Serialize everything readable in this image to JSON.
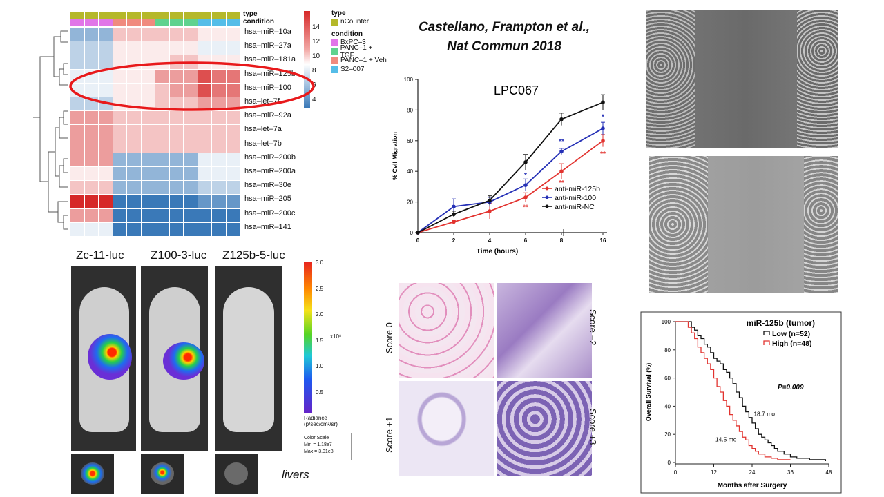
{
  "citation": {
    "line1": "Castellano, Frampton et al.,",
    "line2": "Nat Commun 2018"
  },
  "heatmap": {
    "annotation_labels": {
      "type": "type",
      "condition": "condition"
    },
    "rows": [
      "hsa–miR–10a",
      "hsa–miR–27a",
      "hsa–miR–181a",
      "hsa–miR–125b",
      "hsa–miR–100",
      "hsa–let–7f",
      "hsa–miR–92a",
      "hsa–let–7a",
      "hsa–let–7b",
      "hsa–miR–200b",
      "hsa–miR–200a",
      "hsa–miR–30e",
      "hsa–miR–205",
      "hsa–miR–200c",
      "hsa–miR–141"
    ],
    "values": [
      [
        6,
        6,
        6,
        10,
        10,
        10,
        10,
        10,
        10,
        9,
        9,
        9
      ],
      [
        7,
        7,
        7,
        9,
        9,
        9,
        9,
        9,
        9,
        8,
        8,
        8
      ],
      [
        7,
        7,
        7,
        9,
        9,
        9,
        9,
        10,
        10,
        9,
        9,
        9
      ],
      [
        8,
        8,
        8,
        9,
        9,
        9,
        11,
        11,
        11,
        13,
        12,
        12
      ],
      [
        8,
        8,
        8,
        9,
        9,
        9,
        10,
        11,
        11,
        13,
        12,
        12
      ],
      [
        7,
        7,
        7,
        9,
        9,
        9,
        10,
        10,
        10,
        11,
        11,
        11
      ],
      [
        11,
        11,
        11,
        10,
        10,
        10,
        10,
        10,
        10,
        10,
        10,
        10
      ],
      [
        11,
        11,
        11,
        10,
        10,
        10,
        10,
        10,
        10,
        10,
        10,
        10
      ],
      [
        11,
        11,
        11,
        10,
        10,
        10,
        10,
        10,
        10,
        10,
        10,
        10
      ],
      [
        11,
        11,
        11,
        6,
        6,
        6,
        6,
        6,
        6,
        8,
        8,
        8
      ],
      [
        9,
        9,
        9,
        6,
        6,
        6,
        6,
        6,
        6,
        8,
        8,
        8
      ],
      [
        10,
        10,
        10,
        6,
        6,
        6,
        6,
        6,
        6,
        7,
        7,
        7
      ],
      [
        14,
        14,
        14,
        4,
        4,
        4,
        4,
        4,
        4,
        5,
        5,
        5
      ],
      [
        11,
        11,
        11,
        4,
        4,
        4,
        4,
        4,
        4,
        4,
        4,
        4
      ],
      [
        8,
        8,
        8,
        4,
        4,
        4,
        4,
        4,
        4,
        4,
        4,
        4
      ]
    ],
    "condition_colors": [
      "#e176e8",
      "#e176e8",
      "#e176e8",
      "#f08a7e",
      "#f08a7e",
      "#f08a7e",
      "#5fd28e",
      "#5fd28e",
      "#5fd28e",
      "#55bde8",
      "#55bde8",
      "#55bde8"
    ],
    "type_color": "#b5b82a",
    "colorbar_ticks": [
      "14",
      "12",
      "10",
      "8",
      "6",
      "4"
    ],
    "legend": {
      "type_title": "type",
      "type_items": [
        {
          "label": "nCounter",
          "color": "#b5b82a"
        }
      ],
      "condition_title": "condition",
      "condition_items": [
        {
          "label": "BxPC–3",
          "color": "#e176e8"
        },
        {
          "label": "PANC–1 + TGF",
          "color": "#5fd28e"
        },
        {
          "label": "PANC–1 + Veh",
          "color": "#f08a7e"
        },
        {
          "label": "S2–007",
          "color": "#55bde8"
        }
      ]
    },
    "highlight_color": "#e8191b"
  },
  "chart_data": [
    {
      "type": "line",
      "title": "LPC067",
      "xlabel": "Time (hours)",
      "ylabel": "% Cell Migration",
      "x": [
        0,
        2,
        4,
        6,
        8,
        16
      ],
      "x_tick_labels": [
        "0",
        "2",
        "4",
        "6",
        "8",
        "16"
      ],
      "ylim": [
        0,
        100
      ],
      "y_ticks": [
        0,
        20,
        40,
        60,
        80,
        100
      ],
      "series": [
        {
          "name": "anti-miR-125b",
          "color": "#e2332f",
          "values": [
            0,
            7,
            14,
            23,
            40,
            60
          ],
          "errors": [
            0,
            1,
            5,
            3,
            5,
            4
          ]
        },
        {
          "name": "anti-miR-100",
          "color": "#2530b6",
          "values": [
            0,
            17,
            20,
            31,
            53,
            68
          ],
          "errors": [
            0,
            5,
            3,
            4,
            2,
            4
          ]
        },
        {
          "name": "anti-miR-NC",
          "color": "#111111",
          "values": [
            0,
            12,
            21,
            46,
            74,
            85
          ],
          "errors": [
            0,
            2,
            3,
            5,
            4,
            5
          ]
        }
      ],
      "annotations": [
        {
          "x": 6,
          "y": 36,
          "text": "*",
          "color": "#2530b6"
        },
        {
          "x": 6,
          "y": 15,
          "text": "**",
          "color": "#e2332f"
        },
        {
          "x": 8,
          "y": 58,
          "text": "**",
          "color": "#2530b6"
        },
        {
          "x": 8,
          "y": 31,
          "text": "**",
          "color": "#e2332f"
        },
        {
          "x": 16,
          "y": 74,
          "text": "*",
          "color": "#2530b6"
        },
        {
          "x": 16,
          "y": 50,
          "text": "**",
          "color": "#e2332f"
        }
      ]
    },
    {
      "type": "line",
      "title": "miR-125b (tumor)",
      "xlabel": "Months after Surgery",
      "ylabel": "Overall Survival (%)",
      "xlim": [
        0,
        48
      ],
      "x_ticks": [
        0,
        12,
        24,
        36,
        48
      ],
      "ylim": [
        0,
        100
      ],
      "y_ticks": [
        0,
        20,
        40,
        60,
        80,
        100
      ],
      "series": [
        {
          "name": "Low (n=52)",
          "color": "#111111",
          "x": [
            0,
            4,
            5,
            6,
            7,
            8,
            9,
            10,
            11,
            12,
            13,
            14,
            15,
            16,
            17,
            18,
            19,
            20,
            21,
            22,
            23,
            24,
            25,
            26,
            27,
            28,
            29,
            30,
            31,
            32,
            34,
            36,
            38,
            40,
            42,
            44,
            46,
            47
          ],
          "values": [
            100,
            100,
            96,
            94,
            90,
            88,
            84,
            82,
            78,
            74,
            72,
            70,
            66,
            64,
            60,
            56,
            50,
            46,
            40,
            36,
            32,
            28,
            24,
            20,
            18,
            16,
            14,
            12,
            10,
            8,
            6,
            4,
            3,
            3,
            2,
            2,
            2,
            1
          ]
        },
        {
          "name": "High (n=48)",
          "color": "#e2332f",
          "x": [
            0,
            3,
            4,
            5,
            6,
            7,
            8,
            9,
            10,
            11,
            12,
            13,
            14,
            15,
            16,
            17,
            18,
            19,
            20,
            21,
            22,
            23,
            24,
            25,
            26,
            28,
            30,
            32,
            34,
            36
          ],
          "values": [
            100,
            100,
            96,
            92,
            88,
            82,
            78,
            74,
            70,
            66,
            60,
            54,
            50,
            44,
            40,
            34,
            30,
            26,
            22,
            18,
            16,
            12,
            10,
            8,
            6,
            4,
            3,
            2,
            2,
            2
          ]
        }
      ],
      "annotations": [
        {
          "text": "P=0.009"
        },
        {
          "text": "18.7 mo"
        },
        {
          "text": "14.5 mo"
        }
      ]
    }
  ],
  "imaging": {
    "mice": [
      "Zc-11-luc",
      "Z100-3-luc",
      "Z125b-5-luc"
    ],
    "colorbar_ticks": [
      "3.0",
      "2.5",
      "2.0",
      "1.5",
      "1.0",
      "0.5"
    ],
    "colorbar_unit": "x10⁸",
    "radiance_label": "Radiance",
    "radiance_unit": "(p/sec/cm²/sr)",
    "color_scale_title": "Color Scale",
    "color_scale_min": "Min = 1.18e7",
    "color_scale_max": "Max = 3.01e8",
    "livers_label": "livers"
  },
  "ihc": {
    "scores": [
      "Score 0",
      "Score +2",
      "Score +1",
      "Score +3"
    ]
  }
}
